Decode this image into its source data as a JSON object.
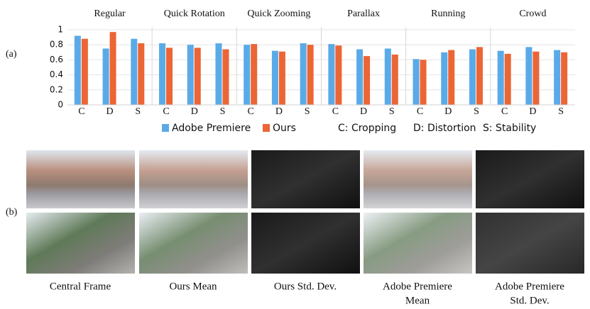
{
  "chart_data": [
    {
      "type": "bar",
      "title": "Regular",
      "categories": [
        "C",
        "D",
        "S"
      ],
      "series": [
        {
          "values": [
            0.92,
            0.75,
            0.88
          ]
        },
        {
          "values": [
            0.88,
            0.97,
            0.82
          ]
        }
      ],
      "ylim": [
        0,
        1
      ],
      "yticks": [
        0,
        0.2,
        0.4,
        0.6,
        0.8,
        1
      ],
      "grid": true
    },
    {
      "type": "bar",
      "title": "Quick Rotation",
      "categories": [
        "C",
        "D",
        "S"
      ],
      "series": [
        {
          "values": [
            0.82,
            0.8,
            0.82
          ]
        },
        {
          "values": [
            0.76,
            0.76,
            0.74
          ]
        }
      ],
      "ylim": [
        0,
        1
      ],
      "yticks": [
        0,
        0.2,
        0.4,
        0.6,
        0.8,
        1
      ],
      "grid": true
    },
    {
      "type": "bar",
      "title": "Quick Zooming",
      "categories": [
        "C",
        "D",
        "S"
      ],
      "series": [
        {
          "values": [
            0.8,
            0.72,
            0.82
          ]
        },
        {
          "values": [
            0.81,
            0.71,
            0.8
          ]
        }
      ],
      "ylim": [
        0,
        1
      ],
      "yticks": [
        0,
        0.2,
        0.4,
        0.6,
        0.8,
        1
      ],
      "grid": true
    },
    {
      "type": "bar",
      "title": "Parallax",
      "categories": [
        "C",
        "D",
        "S"
      ],
      "series": [
        {
          "values": [
            0.81,
            0.74,
            0.75
          ]
        },
        {
          "values": [
            0.79,
            0.65,
            0.67
          ]
        }
      ],
      "ylim": [
        0,
        1
      ],
      "yticks": [
        0,
        0.2,
        0.4,
        0.6,
        0.8,
        1
      ],
      "grid": true
    },
    {
      "type": "bar",
      "title": "Running",
      "categories": [
        "C",
        "D",
        "S"
      ],
      "series": [
        {
          "values": [
            0.61,
            0.7,
            0.74
          ]
        },
        {
          "values": [
            0.6,
            0.73,
            0.77
          ]
        }
      ],
      "ylim": [
        0,
        1
      ],
      "yticks": [
        0,
        0.2,
        0.4,
        0.6,
        0.8,
        1
      ],
      "grid": true
    },
    {
      "type": "bar",
      "title": "Crowd",
      "categories": [
        "C",
        "D",
        "S"
      ],
      "series": [
        {
          "values": [
            0.72,
            0.77,
            0.73
          ]
        },
        {
          "values": [
            0.68,
            0.71,
            0.7
          ]
        }
      ],
      "ylim": [
        0,
        1
      ],
      "yticks": [
        0,
        0.2,
        0.4,
        0.6,
        0.8,
        1
      ],
      "grid": true
    }
  ],
  "legend": {
    "series": [
      {
        "name": "Adobe Premiere",
        "color": "#5aaae8"
      },
      {
        "name": "Ours",
        "color": "#ec6535"
      }
    ],
    "notes": [
      "C: Cropping",
      "D: Distortion",
      "S: Stability"
    ]
  },
  "labels": [
    "(a)",
    "(b)"
  ],
  "captions": [
    [
      "Central Frame"
    ],
    [
      "Ours Mean"
    ],
    [
      "Ours Std. Dev."
    ],
    [
      "Adobe Premiere",
      "Mean"
    ],
    [
      "Adobe Premiere",
      "Std. Dev."
    ]
  ]
}
